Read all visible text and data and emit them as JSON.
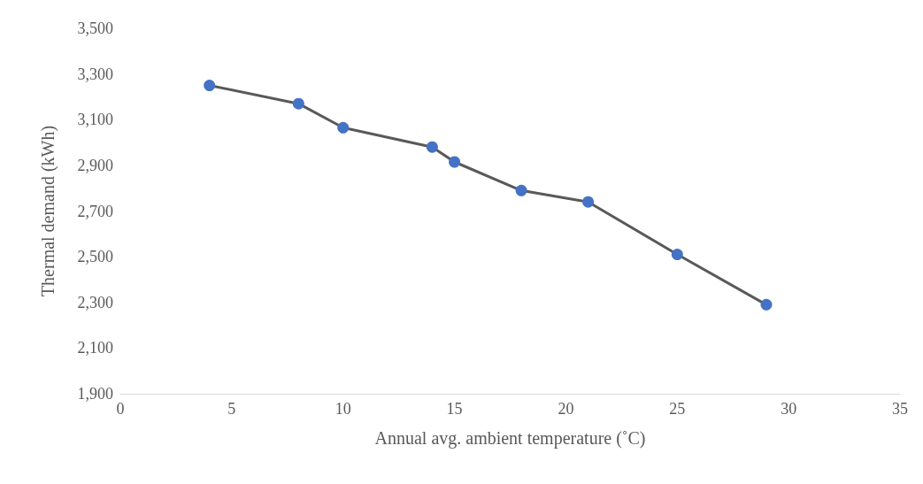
{
  "chart_data": {
    "type": "line",
    "xlabel": "Annual avg. ambient temperature (˚C)",
    "ylabel": "Thermal demand (kWh)",
    "x": [
      4,
      8,
      10,
      14,
      15,
      18,
      21,
      25,
      29
    ],
    "series": [
      {
        "color": "#4472c4",
        "values": [
          3250,
          3170,
          3065,
          2980,
          2915,
          2790,
          2740,
          2510,
          2290
        ]
      }
    ],
    "xlim": [
      0,
      35
    ],
    "xticks": [
      0,
      5,
      10,
      15,
      20,
      25,
      30,
      35
    ],
    "ylim": [
      1900,
      3500
    ],
    "yticks": [
      {
        "value": 1900,
        "label": "1,900"
      },
      {
        "value": 2100,
        "label": "2,100"
      },
      {
        "value": 2300,
        "label": "2,300"
      },
      {
        "value": 2500,
        "label": "2,500"
      },
      {
        "value": 2700,
        "label": "2,700"
      },
      {
        "value": 2900,
        "label": "2,900"
      },
      {
        "value": 3100,
        "label": "3,100"
      },
      {
        "value": 3300,
        "label": "3,300"
      },
      {
        "value": 3500,
        "label": "3,500"
      }
    ],
    "grid": false,
    "marker": "circle",
    "line_style": "solid"
  }
}
